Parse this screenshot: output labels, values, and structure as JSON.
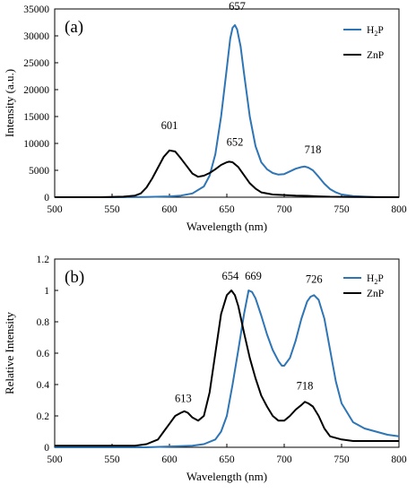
{
  "chart_data": [
    {
      "type": "line",
      "panel_label": "(a)",
      "xlabel": "Wavelength (nm)",
      "ylabel": "Intensity (a.u.)",
      "xlim": [
        500,
        800
      ],
      "ylim": [
        0,
        35000
      ],
      "xticks": [
        500,
        550,
        600,
        650,
        700,
        750,
        800
      ],
      "yticks": [
        0,
        5000,
        10000,
        15000,
        20000,
        25000,
        30000,
        35000
      ],
      "legend_position": "top-right",
      "grid": false,
      "series": [
        {
          "name_main": "H",
          "name_sub": "2",
          "name_tail": "P",
          "color": "#2e75b6",
          "x": [
            500,
            560,
            580,
            600,
            610,
            620,
            630,
            635,
            640,
            645,
            650,
            653,
            655,
            657,
            659,
            662,
            665,
            670,
            675,
            680,
            685,
            690,
            695,
            700,
            705,
            710,
            715,
            718,
            721,
            725,
            730,
            735,
            740,
            745,
            750,
            760,
            770,
            780,
            800
          ],
          "y": [
            0,
            0,
            50,
            150,
            300,
            700,
            2000,
            4000,
            8000,
            15000,
            24000,
            29500,
            31500,
            32000,
            31200,
            28000,
            23000,
            15000,
            9500,
            6500,
            5200,
            4500,
            4200,
            4300,
            4800,
            5300,
            5600,
            5700,
            5500,
            5000,
            3800,
            2500,
            1500,
            900,
            500,
            200,
            100,
            0,
            0
          ]
        },
        {
          "name_main": "ZnP",
          "name_sub": "",
          "name_tail": "",
          "color": "#000000",
          "x": [
            500,
            540,
            560,
            570,
            575,
            580,
            585,
            590,
            595,
            600,
            605,
            610,
            615,
            620,
            625,
            630,
            635,
            640,
            645,
            650,
            652,
            655,
            660,
            665,
            670,
            675,
            680,
            690,
            700,
            710,
            720,
            730,
            740,
            760,
            780,
            800
          ],
          "y": [
            0,
            0,
            100,
            300,
            700,
            1800,
            3500,
            5500,
            7500,
            8700,
            8500,
            7200,
            5800,
            4400,
            3800,
            4000,
            4500,
            5200,
            6000,
            6500,
            6600,
            6500,
            5600,
            4100,
            2600,
            1600,
            900,
            500,
            400,
            300,
            250,
            150,
            80,
            50,
            20,
            0
          ]
        }
      ],
      "peak_labels": [
        {
          "text": "657",
          "x": 659,
          "y": 34800
        },
        {
          "text": "601",
          "x": 600,
          "y": 12700
        },
        {
          "text": "652",
          "x": 657,
          "y": 9600
        },
        {
          "text": "718",
          "x": 725,
          "y": 8200
        }
      ]
    },
    {
      "type": "line",
      "panel_label": "(b)",
      "xlabel": "Wavelength (nm)",
      "ylabel": "Relative Intensity",
      "xlim": [
        500,
        800
      ],
      "ylim": [
        0,
        1.2
      ],
      "xticks": [
        500,
        550,
        600,
        650,
        700,
        750,
        800
      ],
      "yticks": [
        0,
        0.2,
        0.4,
        0.6,
        0.8,
        1,
        1.2
      ],
      "legend_position": "top-right",
      "grid": false,
      "series": [
        {
          "name_main": "H",
          "name_sub": "2",
          "name_tail": "P",
          "color": "#2e75b6",
          "x": [
            500,
            580,
            600,
            620,
            630,
            640,
            645,
            650,
            655,
            660,
            665,
            669,
            672,
            675,
            680,
            685,
            690,
            695,
            698,
            700,
            705,
            710,
            715,
            720,
            723,
            726,
            730,
            735,
            740,
            745,
            750,
            760,
            770,
            780,
            790,
            800
          ],
          "y": [
            0,
            0,
            0.005,
            0.01,
            0.02,
            0.05,
            0.1,
            0.2,
            0.4,
            0.62,
            0.85,
            1.0,
            0.99,
            0.95,
            0.84,
            0.72,
            0.62,
            0.55,
            0.52,
            0.52,
            0.57,
            0.68,
            0.82,
            0.93,
            0.96,
            0.97,
            0.94,
            0.82,
            0.62,
            0.42,
            0.28,
            0.16,
            0.12,
            0.1,
            0.08,
            0.07
          ]
        },
        {
          "name_main": "ZnP",
          "name_sub": "",
          "name_tail": "",
          "color": "#000000",
          "x": [
            500,
            570,
            580,
            590,
            595,
            600,
            605,
            610,
            613,
            616,
            620,
            625,
            630,
            635,
            640,
            645,
            650,
            654,
            657,
            660,
            665,
            670,
            675,
            680,
            685,
            690,
            695,
            700,
            705,
            710,
            715,
            718,
            721,
            725,
            730,
            735,
            740,
            750,
            760,
            770,
            780,
            800
          ],
          "y": [
            0.01,
            0.01,
            0.02,
            0.05,
            0.1,
            0.15,
            0.2,
            0.22,
            0.23,
            0.22,
            0.19,
            0.17,
            0.2,
            0.35,
            0.6,
            0.85,
            0.97,
            1.0,
            0.97,
            0.9,
            0.73,
            0.57,
            0.44,
            0.33,
            0.26,
            0.2,
            0.17,
            0.17,
            0.2,
            0.24,
            0.27,
            0.29,
            0.28,
            0.26,
            0.2,
            0.12,
            0.07,
            0.05,
            0.04,
            0.04,
            0.04,
            0.04
          ]
        }
      ],
      "peak_labels": [
        {
          "text": "654",
          "x": 653,
          "y": 1.07
        },
        {
          "text": "669",
          "x": 673,
          "y": 1.07
        },
        {
          "text": "726",
          "x": 726,
          "y": 1.05
        },
        {
          "text": "613",
          "x": 612,
          "y": 0.29
        },
        {
          "text": "718",
          "x": 718,
          "y": 0.37
        }
      ]
    }
  ]
}
